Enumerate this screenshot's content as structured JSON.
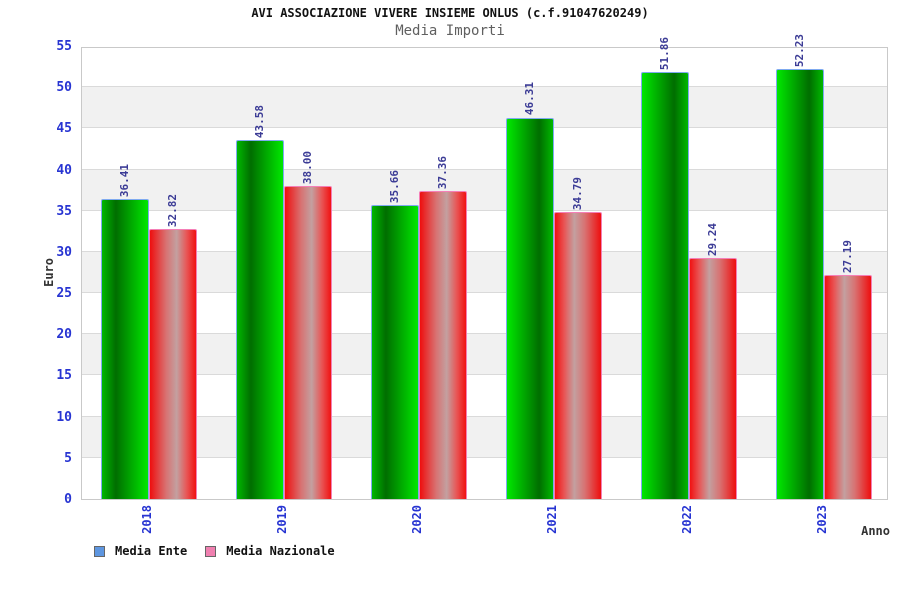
{
  "chart_data": {
    "type": "bar",
    "title": "AVI ASSOCIAZIONE VIVERE INSIEME ONLUS (c.f.91047620249)",
    "subtitle": "Media Importi",
    "xlabel": "Anno",
    "ylabel": "Euro",
    "categories": [
      "2018",
      "2019",
      "2020",
      "2021",
      "2022",
      "2023"
    ],
    "series": [
      {
        "name": "Media Ente",
        "values": [
          36.41,
          43.58,
          35.66,
          46.31,
          51.86,
          52.23
        ],
        "legend_color": "#5e96e0",
        "bar_border": "#7faaf0",
        "bar_gradient": [
          [
            "#00b800",
            0
          ],
          [
            "#006e00",
            30
          ],
          [
            "#00e800",
            100
          ]
        ]
      },
      {
        "name": "Media Nazionale",
        "values": [
          32.82,
          38.0,
          37.36,
          34.79,
          29.24,
          27.19
        ],
        "legend_color": "#f080b0",
        "bar_border": "#f57fb7",
        "bar_gradient": [
          [
            "#ee0f0f",
            0
          ],
          [
            "#d87272",
            35
          ],
          [
            "#c3a0a0",
            58
          ],
          [
            "#e85555",
            80
          ],
          [
            "#f01212",
            100
          ]
        ]
      }
    ],
    "value_labels": [
      [
        "36.41",
        "43.58",
        "35.66",
        "46.31",
        "51.86",
        "52.23"
      ],
      [
        "32.82",
        "38.00",
        "37.36",
        "34.79",
        "29.24",
        "27.19"
      ]
    ],
    "ylim": [
      0,
      55
    ],
    "y_ticks": [
      0,
      5,
      10,
      15,
      20,
      25,
      30,
      35,
      40,
      45,
      50,
      55
    ],
    "grid": "horizontal-bands-alternating",
    "legend_position": "bottom-left"
  },
  "colors": {
    "tick_label": "#2734d2",
    "value_label": "#3c3c96",
    "axis_title": "#333333",
    "title": "#111111",
    "subtitle": "#606060",
    "band": "#f1f1f1",
    "gridline": "#dadada",
    "plot_border": "#c9c9c9"
  }
}
